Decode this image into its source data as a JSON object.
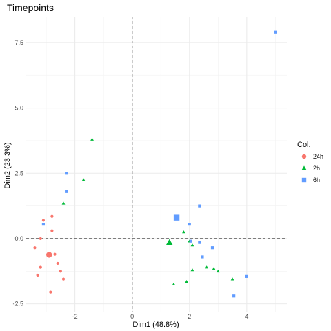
{
  "chart_data": {
    "type": "scatter",
    "title": "Timepoints",
    "xlabel": "Dim1 (48.8%)",
    "ylabel": "Dim2 (23.3%)",
    "xlim": [
      -3.7,
      5.4
    ],
    "ylim": [
      -2.8,
      8.5
    ],
    "xticks": [
      -2,
      0,
      2,
      4
    ],
    "xtick_labels": [
      "-2",
      "0",
      "2",
      "4"
    ],
    "yticks": [
      -2.5,
      0.0,
      2.5,
      5.0,
      7.5
    ],
    "ytick_labels": [
      "-2.5",
      "0.0",
      "2.5",
      "5.0",
      "7.5"
    ],
    "grid": true,
    "reference_lines": {
      "x": 0,
      "y": 0,
      "style": "dashed"
    },
    "legend": {
      "title": "Col.",
      "position": "right"
    },
    "series": [
      {
        "name": "24h",
        "color": "#F8766D",
        "marker": "circle",
        "points": [
          [
            -3.1,
            0.7
          ],
          [
            -2.8,
            0.85
          ],
          [
            -2.8,
            0.3
          ],
          [
            -3.2,
            0.0
          ],
          [
            -3.4,
            -0.35
          ],
          [
            -2.7,
            -0.6
          ],
          [
            -2.6,
            -0.95
          ],
          [
            -3.2,
            -1.1
          ],
          [
            -2.5,
            -1.25
          ],
          [
            -3.3,
            -1.4
          ],
          [
            -2.4,
            -1.55
          ],
          [
            -2.85,
            -2.05
          ]
        ],
        "centroid": [
          -2.9,
          -0.62
        ]
      },
      {
        "name": "2h",
        "color": "#00BA38",
        "marker": "triangle",
        "points": [
          [
            -1.4,
            3.8
          ],
          [
            -1.7,
            2.25
          ],
          [
            -2.4,
            1.35
          ],
          [
            1.8,
            0.25
          ],
          [
            2.0,
            -0.1
          ],
          [
            2.1,
            -0.25
          ],
          [
            2.1,
            -1.2
          ],
          [
            2.6,
            -1.1
          ],
          [
            2.85,
            -1.15
          ],
          [
            3.0,
            -1.25
          ],
          [
            3.5,
            -1.55
          ],
          [
            1.9,
            -1.65
          ],
          [
            1.45,
            -1.75
          ]
        ],
        "centroid": [
          1.3,
          -0.15
        ]
      },
      {
        "name": "6h",
        "color": "#619CFF",
        "marker": "square",
        "points": [
          [
            5.0,
            7.9
          ],
          [
            -2.3,
            2.5
          ],
          [
            -2.3,
            1.8
          ],
          [
            2.35,
            1.25
          ],
          [
            -3.1,
            0.55
          ],
          [
            2.0,
            0.55
          ],
          [
            2.05,
            -0.1
          ],
          [
            2.35,
            -0.15
          ],
          [
            2.8,
            -0.35
          ],
          [
            2.45,
            -0.7
          ],
          [
            4.0,
            -1.45
          ],
          [
            3.55,
            -2.2
          ]
        ],
        "centroid": [
          1.55,
          0.8
        ]
      }
    ]
  }
}
